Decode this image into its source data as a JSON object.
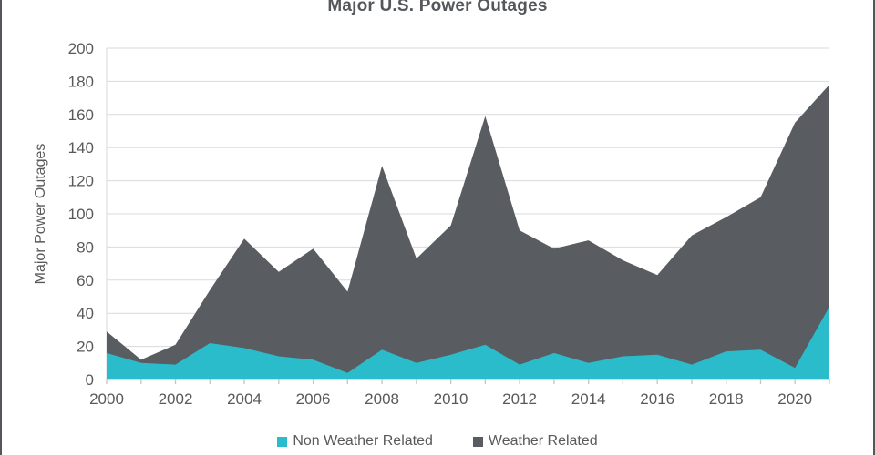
{
  "title": "Major U.S. Power Outages",
  "y_axis": {
    "label": "Major Power Outages",
    "ticks": [
      0,
      20,
      40,
      60,
      80,
      100,
      120,
      140,
      160,
      180,
      200
    ]
  },
  "x_axis": {
    "labels": [
      "2000",
      "2002",
      "2004",
      "2006",
      "2008",
      "2010",
      "2012",
      "2014",
      "2016",
      "2018",
      "2020"
    ]
  },
  "legend": {
    "items": [
      {
        "label": "Non Weather Related",
        "color": "#2bbccc"
      },
      {
        "label": "Weather Related",
        "color": "#595c60"
      }
    ]
  },
  "colors": {
    "non_weather_area": "#2bbccc",
    "weather_area": "#595c60",
    "axis_text": "#595959",
    "title_text": "#54575b",
    "gridline": "#dadada",
    "axis_line": "#c4c4c4",
    "panel_border": "#53565a"
  },
  "chart_data": {
    "type": "area",
    "stacked": true,
    "title": "Major U.S. Power Outages",
    "xlabel": "",
    "ylabel": "Major Power Outages",
    "ylim": [
      0,
      200
    ],
    "ytick_step": 20,
    "grid": true,
    "legend_position": "bottom",
    "x": [
      2000,
      2001,
      2002,
      2003,
      2004,
      2005,
      2006,
      2007,
      2008,
      2009,
      2010,
      2011,
      2012,
      2013,
      2014,
      2015,
      2016,
      2017,
      2018,
      2019,
      2020,
      2021
    ],
    "series": [
      {
        "name": "Non Weather Related",
        "color": "#2bbccc",
        "values": [
          16,
          10,
          9,
          22,
          19,
          14,
          12,
          4,
          18,
          10,
          15,
          21,
          9,
          16,
          10,
          14,
          15,
          9,
          17,
          18,
          7,
          44
        ]
      },
      {
        "name": "Weather Related",
        "color": "#595c60",
        "values": [
          13,
          2,
          12,
          32,
          66,
          51,
          67,
          49,
          111,
          63,
          78,
          138,
          81,
          63,
          74,
          58,
          48,
          78,
          81,
          92,
          148,
          134
        ]
      }
    ],
    "stacked_totals": [
      29,
      12,
      21,
      54,
      85,
      65,
      79,
      53,
      129,
      73,
      93,
      159,
      90,
      79,
      84,
      72,
      63,
      87,
      98,
      110,
      155,
      178
    ]
  }
}
